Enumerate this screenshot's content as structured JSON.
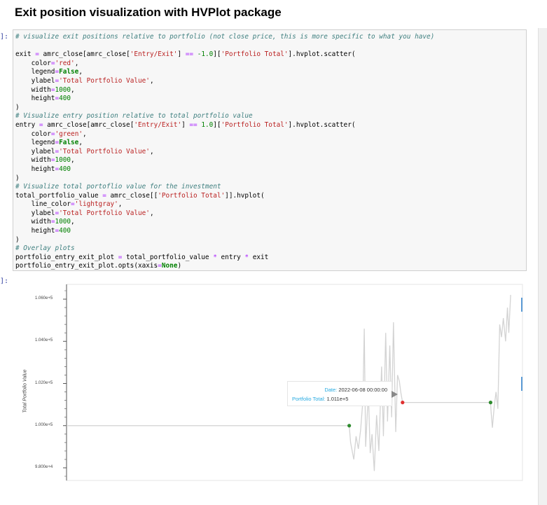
{
  "notebook": {
    "heading": "Exit position visualization with HVPlot package",
    "input_prompt": "]:",
    "output_prompt": "]:"
  },
  "code_lines": [
    "# visualize exit positions relative to portfolio (not close price, this is more specific to what you have)",
    "",
    "exit = amrc_close[amrc_close['Entry/Exit'] == -1.0]['Portfolio Total'].hvplot.scatter(",
    "    color='red',",
    "    legend=False,",
    "    ylabel='Total Portfolio Value',",
    "    width=1000,",
    "    height=400",
    ")",
    "# Visualize entry position relative to total portfolio value",
    "entry = amrc_close[amrc_close['Entry/Exit'] == 1.0]['Portfolio Total'].hvplot.scatter(",
    "    color='green',",
    "    legend=False,",
    "    ylabel='Total Portfolio Value',",
    "    width=1000,",
    "    height=400",
    ")",
    "# Visualize total portoflio value for the investment",
    "total_portfolio_value = amrc_close[['Portfolio Total']].hvplot(",
    "    line_color='lightgray',",
    "    ylabel='Total Portfolio Value',",
    "    width=1000,",
    "    height=400",
    ")",
    "# Overlay plots",
    "portfolio_entry_exit_plot = total_portfolio_value * entry * exit",
    "portfolio_entry_exit_plot.opts(xaxis=None)"
  ],
  "chart_data": {
    "type": "line",
    "ylabel": "Total Portfolio Value",
    "xaxis": "none",
    "ylim": [
      97400,
      106700
    ],
    "yticks": [
      98000,
      100000,
      102000,
      104000,
      106000
    ],
    "ytick_labels": [
      "9.800e+4",
      "1.000e+5",
      "1.020e+5",
      "1.040e+5",
      "1.060e+5"
    ],
    "colors": {
      "line": "#d3d3d3",
      "entry": "#2e8b2e",
      "exit": "#e03030",
      "tooltip_key": "#26aae1"
    },
    "series": [
      {
        "name": "Portfolio Total",
        "style": "line",
        "points": [
          [
            0,
            100000
          ],
          [
            62,
            100000
          ],
          [
            62.3,
            99200
          ],
          [
            63,
            98400
          ],
          [
            63.5,
            99500
          ],
          [
            64,
            98900
          ],
          [
            64.5,
            99800
          ],
          [
            65,
            101200
          ],
          [
            65.3,
            104600
          ],
          [
            65.6,
            99000
          ],
          [
            66.2,
            101600
          ],
          [
            66.6,
            98700
          ],
          [
            67,
            99600
          ],
          [
            67.5,
            97850
          ],
          [
            68,
            100500
          ],
          [
            68.5,
            98800
          ],
          [
            69.1,
            102800
          ],
          [
            69.5,
            99500
          ],
          [
            70,
            104400
          ],
          [
            70.4,
            100200
          ],
          [
            70.9,
            103800
          ],
          [
            71.3,
            100400
          ],
          [
            71.7,
            104900
          ],
          [
            72.2,
            99700
          ],
          [
            72.6,
            102400
          ],
          [
            73,
            102100
          ],
          [
            73.3,
            101600
          ],
          [
            73.7,
            101100
          ],
          [
            93,
            101100
          ],
          [
            93.1,
            100700
          ],
          [
            93.4,
            99900
          ],
          [
            93.8,
            100900
          ],
          [
            94.2,
            101600
          ],
          [
            94.6,
            100800
          ],
          [
            95,
            104800
          ],
          [
            95.4,
            104200
          ],
          [
            95.8,
            105100
          ],
          [
            96.3,
            104000
          ],
          [
            96.7,
            105600
          ],
          [
            97,
            104400
          ],
          [
            97.4,
            106200
          ]
        ]
      },
      {
        "name": "entry",
        "style": "scatter",
        "points": [
          [
            62,
            100000
          ],
          [
            93,
            101100
          ]
        ]
      },
      {
        "name": "exit",
        "style": "scatter",
        "points": [
          [
            73.7,
            101100
          ]
        ]
      }
    ],
    "tooltip": {
      "date_key": "Date:",
      "date_value": "2022-06-08 00:00:00",
      "value_key": "Portfolio Total:",
      "value_value": "1.011e+5"
    }
  }
}
